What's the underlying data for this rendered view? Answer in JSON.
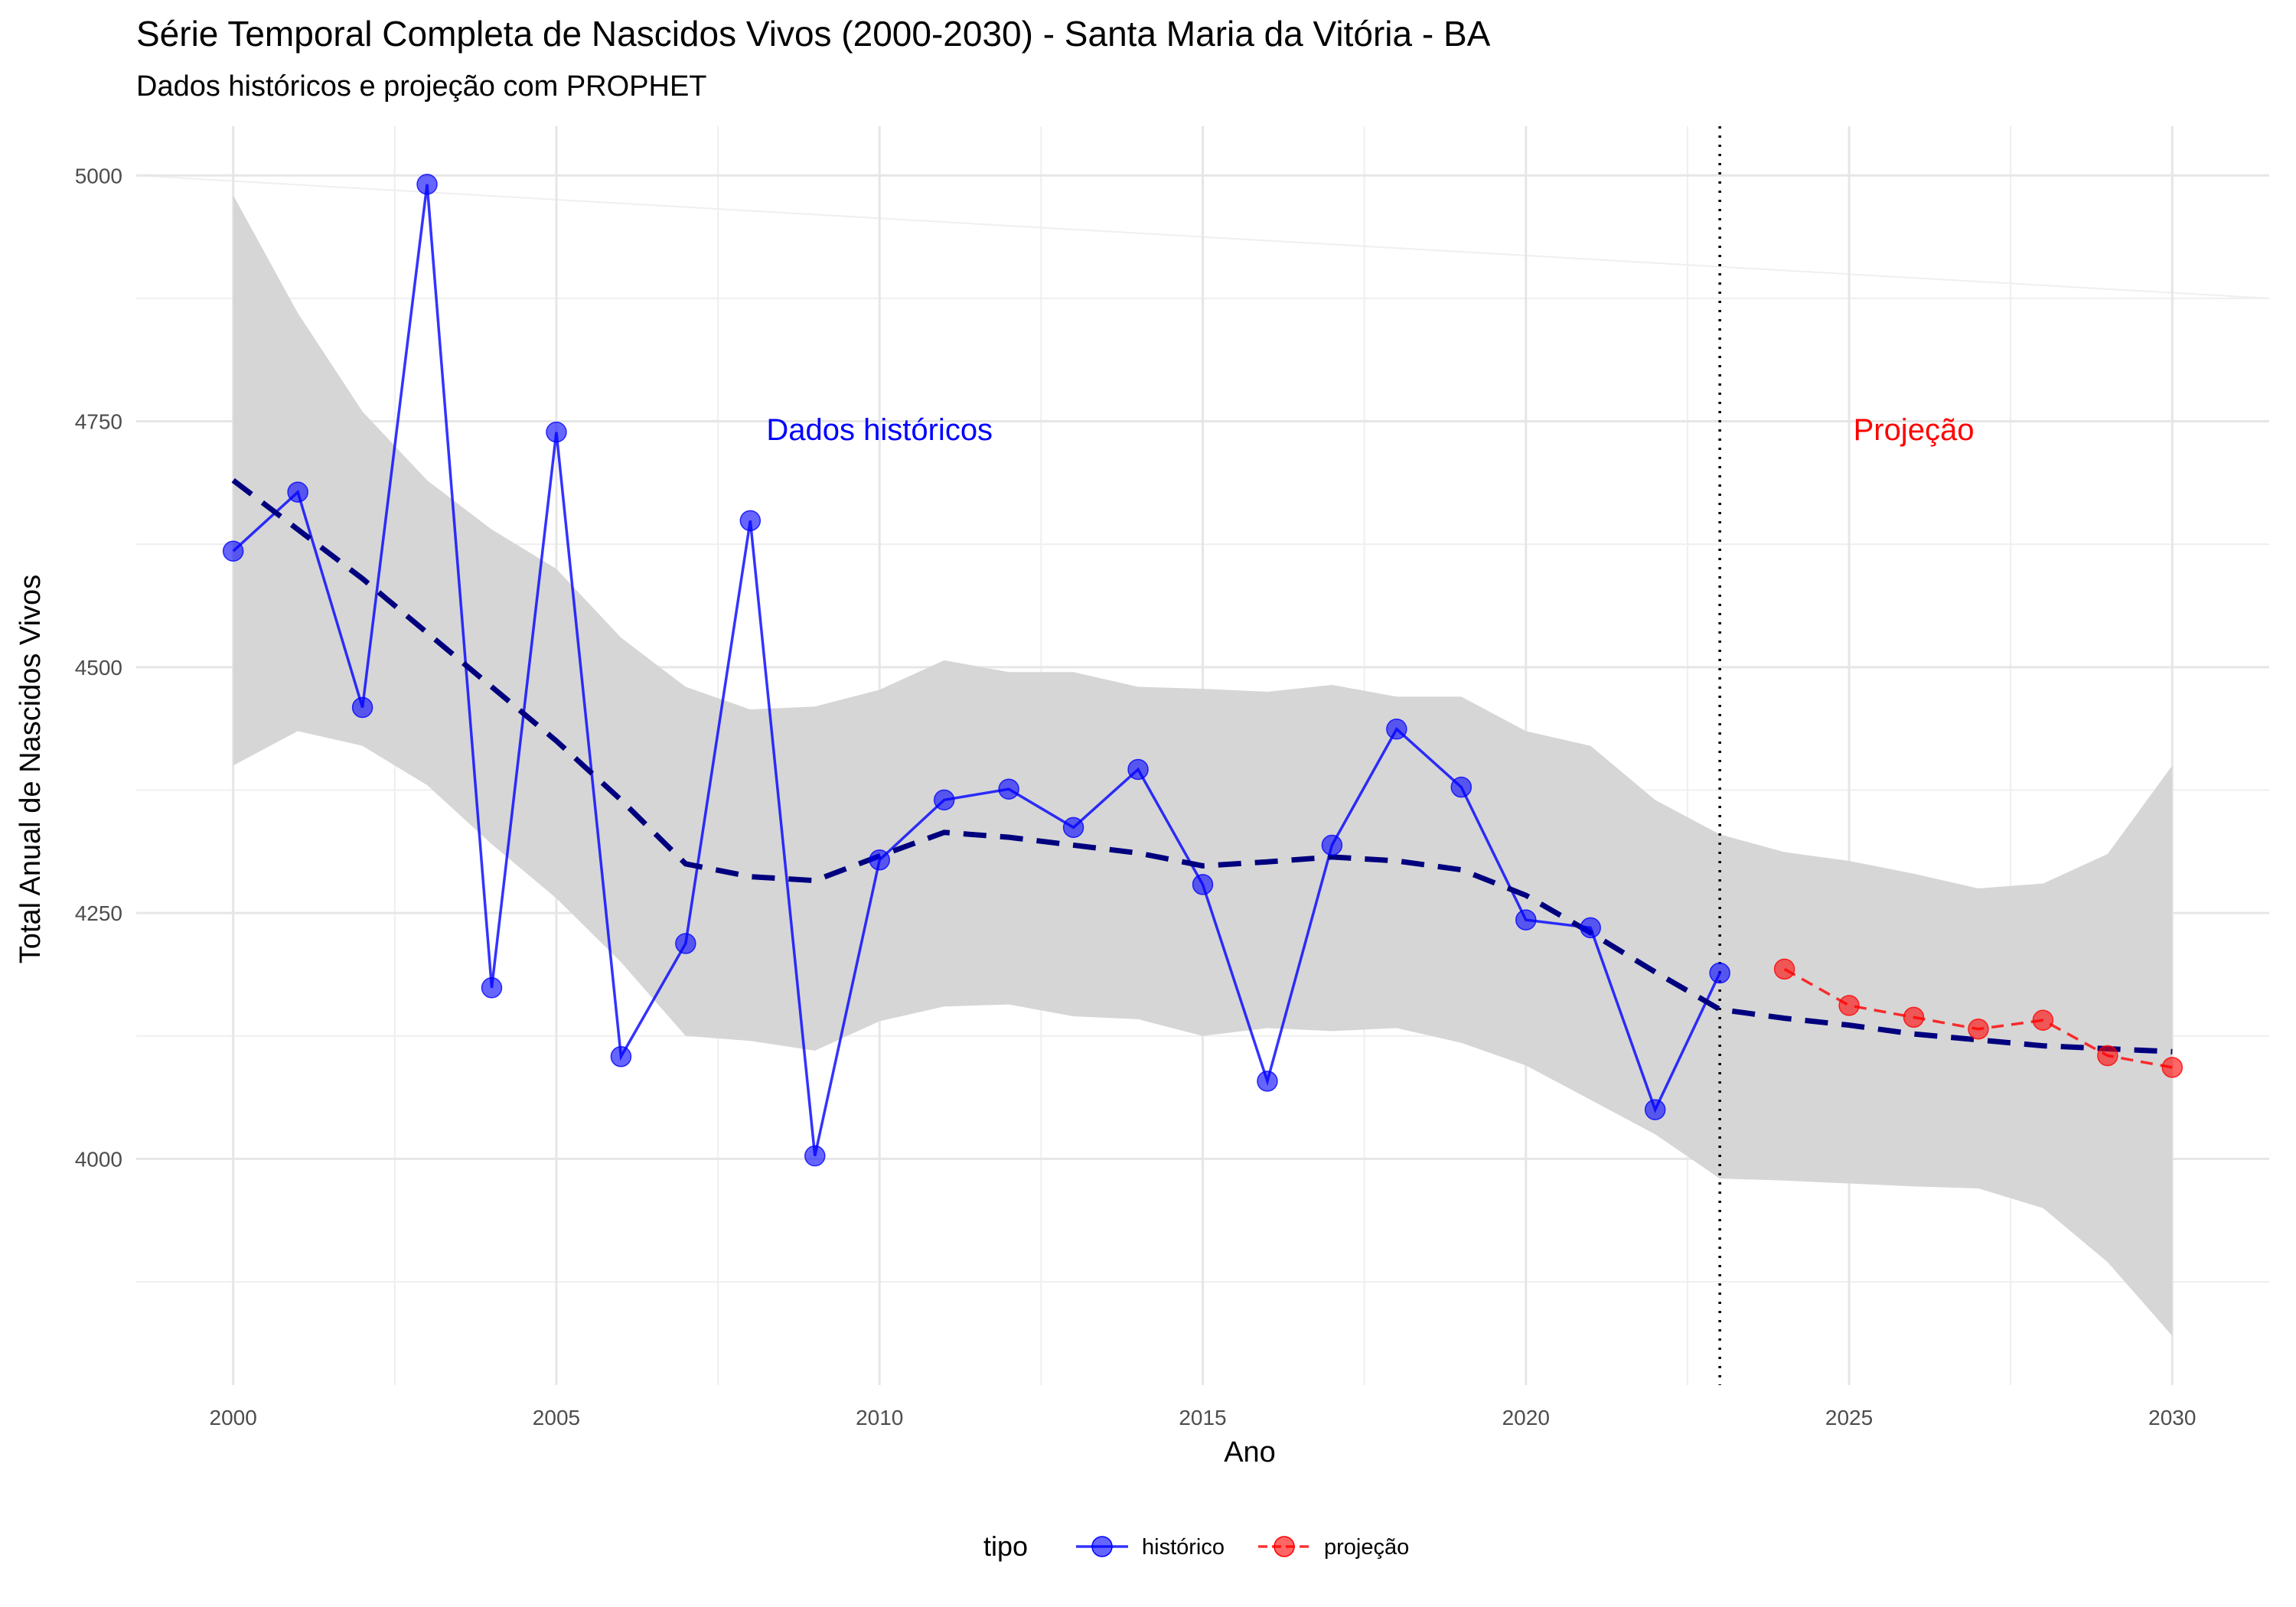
{
  "chart_data": {
    "type": "line",
    "title": "Série Temporal Completa de Nascidos Vivos (2000-2030) -  Santa Maria da Vitória - BA",
    "subtitle": "Dados históricos e projeção com PROPHET",
    "xlabel": "Ano",
    "ylabel": "Total Anual de Nascidos Vivos",
    "xlim": [
      1998.5,
      2031.5
    ],
    "ylim": [
      3770,
      5050
    ],
    "x_ticks": [
      2000,
      2005,
      2010,
      2015,
      2020,
      2025,
      2030
    ],
    "x_tick_labels": [
      "2000",
      "2005",
      "2010",
      "2015",
      "2020",
      "2025",
      "2030"
    ],
    "y_ticks": [
      4000,
      4250,
      4500,
      4750,
      5000
    ],
    "y_tick_labels": [
      "4000",
      "4250",
      "4500",
      "4750",
      "5000"
    ],
    "grid": true,
    "legend": {
      "title": "tipo",
      "position": "bottom"
    },
    "series": [
      {
        "name": "histórico",
        "color": "#0000ff",
        "x": [
          2000,
          2001,
          2002,
          2003,
          2004,
          2005,
          2006,
          2007,
          2008,
          2009,
          2010,
          2011,
          2012,
          2013,
          2014,
          2015,
          2016,
          2017,
          2018,
          2019,
          2020,
          2021,
          2022,
          2023
        ],
        "values": [
          4618,
          4678,
          4459,
          4991,
          4174,
          4739,
          4104,
          4219,
          4649,
          4003,
          4304,
          4365,
          4376,
          4337,
          4396,
          4279,
          4079,
          4319,
          4437,
          4378,
          4243,
          4235,
          4050,
          4189
        ]
      },
      {
        "name": "projeção",
        "color": "#ff0000",
        "x": [
          2024,
          2025,
          2026,
          2027,
          2028,
          2029,
          2030
        ],
        "values": [
          4193,
          4156,
          4144,
          4132,
          4141,
          4105,
          4093
        ]
      }
    ],
    "trend": {
      "color": "#00007f",
      "x": [
        2000,
        2001,
        2002,
        2003,
        2004,
        2005,
        2006,
        2007,
        2008,
        2009,
        2010,
        2011,
        2012,
        2013,
        2014,
        2015,
        2016,
        2017,
        2018,
        2019,
        2020,
        2021,
        2022,
        2023,
        2024,
        2025,
        2026,
        2027,
        2028,
        2029,
        2030
      ],
      "values": [
        4690,
        4640,
        4590,
        4535,
        4480,
        4425,
        4365,
        4300,
        4287,
        4283,
        4308,
        4332,
        4327,
        4319,
        4311,
        4298,
        4302,
        4307,
        4303,
        4294,
        4268,
        4230,
        4190,
        4152,
        4143,
        4136,
        4127,
        4121,
        4115,
        4112,
        4109
      ]
    },
    "confidence_band": {
      "color": "#d6d6d6",
      "x": [
        2000,
        2001,
        2002,
        2003,
        2004,
        2005,
        2006,
        2007,
        2008,
        2009,
        2010,
        2011,
        2012,
        2013,
        2014,
        2015,
        2016,
        2017,
        2018,
        2019,
        2020,
        2021,
        2022,
        2023,
        2024,
        2025,
        2026,
        2027,
        2028,
        2029,
        2030
      ],
      "lower": [
        4400,
        4435,
        4420,
        4380,
        4320,
        4265,
        4200,
        4125,
        4120,
        4110,
        4140,
        4155,
        4157,
        4145,
        4142,
        4125,
        4133,
        4130,
        4133,
        4118,
        4095,
        4060,
        4025,
        3980,
        3978,
        3975,
        3972,
        3970,
        3950,
        3895,
        3820
      ],
      "upper": [
        4980,
        4860,
        4760,
        4690,
        4640,
        4600,
        4530,
        4480,
        4457,
        4460,
        4477,
        4507,
        4495,
        4495,
        4480,
        4478,
        4475,
        4482,
        4470,
        4470,
        4435,
        4420,
        4365,
        4330,
        4312,
        4303,
        4290,
        4275,
        4280,
        4310,
        4400
      ]
    },
    "forecast_start": 2023,
    "annotations": [
      {
        "text": "Dados históricos",
        "x": 2010,
        "y": 4742,
        "color": "#0000ff"
      },
      {
        "text": "Projeção",
        "x": 2026,
        "y": 4742,
        "color": "#ff0000"
      }
    ]
  }
}
